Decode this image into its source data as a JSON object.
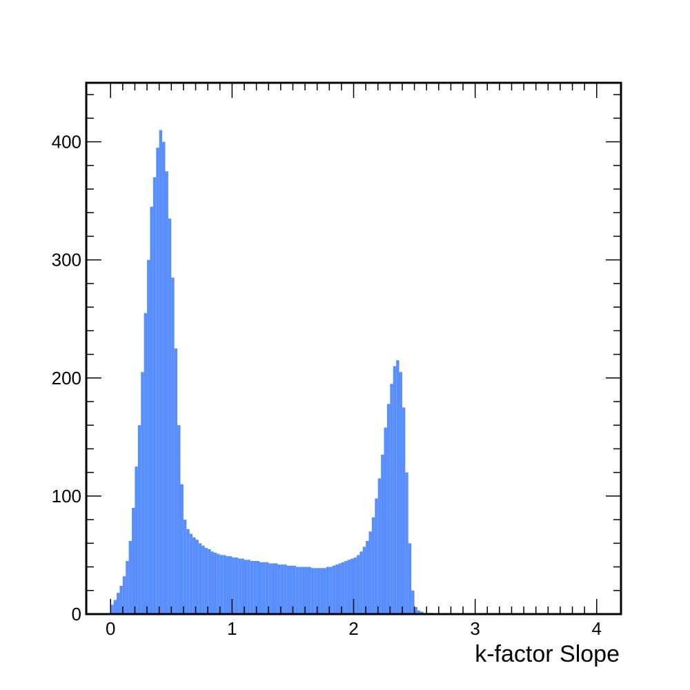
{
  "chart_data": {
    "type": "histogram",
    "title": "",
    "xlabel": "k-factor Slope",
    "ylabel": "",
    "xlim": [
      -0.2,
      4.2
    ],
    "ylim": [
      0,
      450
    ],
    "bin_width": 0.025,
    "grid": false,
    "legend": "none",
    "x_ticks": [
      0,
      1,
      2,
      3,
      4
    ],
    "x_tick_labels": [
      "0",
      "1",
      "2",
      "3",
      "4"
    ],
    "y_ticks": [
      0,
      100,
      200,
      300,
      400
    ],
    "y_tick_labels": [
      "0",
      "100",
      "200",
      "300",
      "400"
    ],
    "bar_color": "#598ffc",
    "x": [
      0.0,
      0.025,
      0.05,
      0.075,
      0.1,
      0.125,
      0.15,
      0.175,
      0.2,
      0.225,
      0.25,
      0.275,
      0.3,
      0.325,
      0.35,
      0.375,
      0.4,
      0.425,
      0.45,
      0.475,
      0.5,
      0.525,
      0.55,
      0.575,
      0.6,
      0.625,
      0.65,
      0.675,
      0.7,
      0.725,
      0.75,
      0.775,
      0.8,
      0.825,
      0.85,
      0.875,
      0.9,
      0.925,
      0.95,
      0.975,
      1.0,
      1.025,
      1.05,
      1.075,
      1.1,
      1.125,
      1.15,
      1.175,
      1.2,
      1.225,
      1.25,
      1.275,
      1.3,
      1.325,
      1.35,
      1.375,
      1.4,
      1.425,
      1.45,
      1.475,
      1.5,
      1.525,
      1.55,
      1.575,
      1.6,
      1.625,
      1.65,
      1.675,
      1.7,
      1.725,
      1.75,
      1.775,
      1.8,
      1.825,
      1.85,
      1.875,
      1.9,
      1.925,
      1.95,
      1.975,
      2.0,
      2.025,
      2.05,
      2.075,
      2.1,
      2.125,
      2.15,
      2.175,
      2.2,
      2.225,
      2.25,
      2.275,
      2.3,
      2.325,
      2.35,
      2.375,
      2.4,
      2.425,
      2.45,
      2.475,
      2.5,
      2.525,
      2.55,
      2.575,
      2.6,
      2.625,
      2.65,
      2.675,
      2.7,
      2.725,
      2.75,
      2.775,
      2.8
    ],
    "values": [
      8,
      12,
      18,
      24,
      32,
      45,
      62,
      90,
      125,
      160,
      205,
      255,
      300,
      345,
      370,
      395,
      410,
      400,
      375,
      335,
      285,
      225,
      160,
      110,
      80,
      72,
      68,
      65,
      63,
      60,
      58,
      56,
      55,
      53,
      52,
      51,
      50,
      50,
      49,
      49,
      48,
      48,
      47,
      47,
      46,
      46,
      45,
      45,
      45,
      44,
      44,
      44,
      43,
      43,
      43,
      42,
      42,
      42,
      41,
      41,
      41,
      40,
      40,
      40,
      40,
      40,
      39,
      39,
      39,
      39,
      39,
      40,
      40,
      41,
      42,
      43,
      44,
      45,
      46,
      47,
      48,
      50,
      53,
      57,
      62,
      70,
      82,
      98,
      115,
      135,
      158,
      178,
      195,
      210,
      215,
      205,
      175,
      120,
      60,
      20,
      6,
      3,
      2,
      1,
      1,
      1,
      0,
      0,
      0,
      0,
      0,
      0,
      0
    ]
  }
}
